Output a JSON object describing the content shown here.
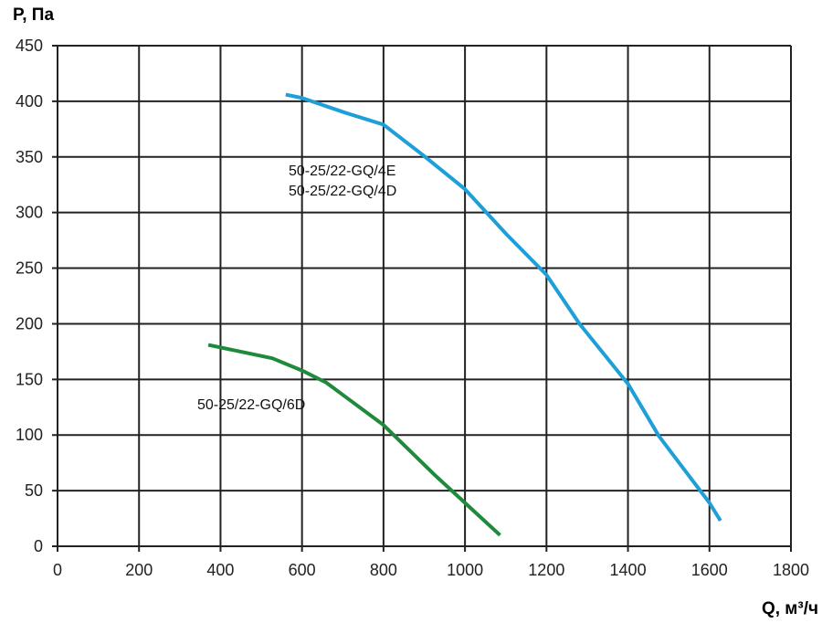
{
  "chart_data": {
    "type": "line",
    "title": "",
    "xlabel": "Q, м³/ч",
    "ylabel": "P, Па",
    "xlim": [
      0,
      1800
    ],
    "ylim": [
      0,
      450
    ],
    "grid": true,
    "xticks": [
      0,
      200,
      400,
      600,
      800,
      1000,
      1200,
      1400,
      1600,
      1800
    ],
    "yticks": [
      0,
      50,
      100,
      150,
      200,
      250,
      300,
      350,
      400,
      450
    ],
    "series": [
      {
        "name": "50-25/22-GQ/4E\n50-25/22-GQ/4D",
        "label_lines": [
          "50-25/22-GQ/4E",
          "50-25/22-GQ/4D"
        ],
        "color": "#1e9fd8",
        "x": [
          560,
          600,
          704,
          800,
          899,
          1000,
          1103,
          1200,
          1281,
          1400,
          1476,
          1600,
          1627
        ],
        "y": [
          406,
          403,
          390,
          379,
          351,
          321,
          280,
          244,
          200,
          146,
          99,
          39,
          23
        ]
      },
      {
        "name": "50-25/22-GQ/6D",
        "label_lines": [
          "50-25/22-GQ/6D"
        ],
        "color": "#1f8a3c",
        "x": [
          370,
          527,
          600,
          660,
          800,
          926,
          1000,
          1086
        ],
        "y": [
          181,
          169,
          158,
          147,
          109,
          64,
          39,
          10
        ]
      }
    ]
  }
}
